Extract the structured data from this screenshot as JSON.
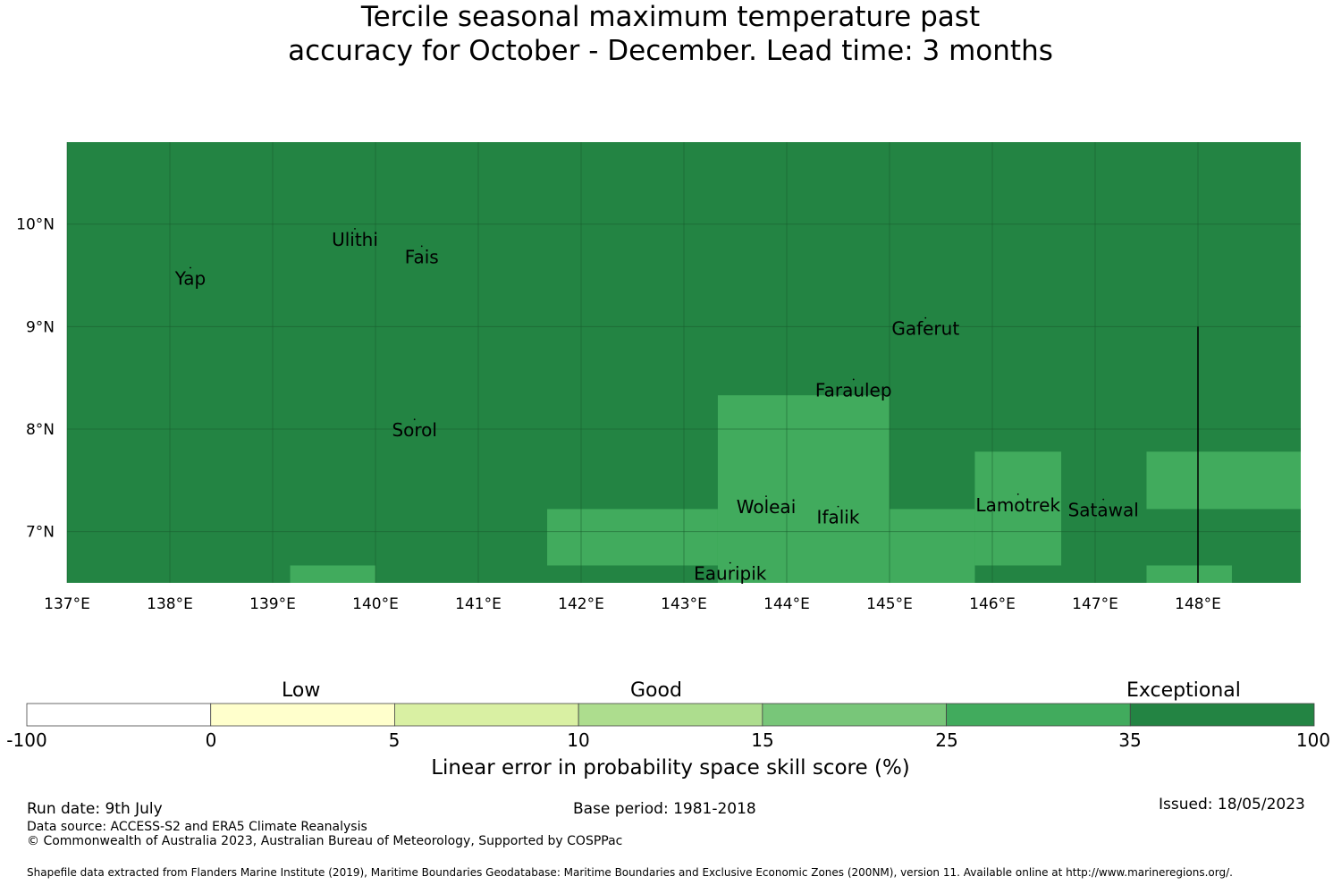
{
  "title_line1": "Tercile seasonal maximum temperature past",
  "title_line2": "accuracy for October - December. Lead time: 3 months",
  "map": {
    "lon_range": [
      137,
      149
    ],
    "lat_range": [
      6.5,
      10.8
    ],
    "lon_ticks": [
      137,
      138,
      139,
      140,
      141,
      142,
      143,
      144,
      145,
      146,
      147,
      148
    ],
    "lon_tick_labels": [
      "137°E",
      "138°E",
      "139°E",
      "140°E",
      "141°E",
      "142°E",
      "143°E",
      "144°E",
      "145°E",
      "146°E",
      "147°E",
      "148°E"
    ],
    "lat_ticks": [
      10,
      9,
      8,
      7
    ],
    "lat_tick_labels": [
      "10°N",
      "9°N",
      "8°N",
      "7°N"
    ],
    "background_color": "#238443",
    "cells": [
      {
        "lon0": 139.17,
        "lon1": 140.0,
        "lat0": 6.5,
        "lat1": 6.67,
        "color": "#41ab5d"
      },
      {
        "lon0": 141.67,
        "lon1": 143.33,
        "lat0": 6.67,
        "lat1": 7.22,
        "color": "#41ab5d"
      },
      {
        "lon0": 143.33,
        "lon1": 145.0,
        "lat0": 6.5,
        "lat1": 8.33,
        "color": "#41ab5d"
      },
      {
        "lon0": 145.0,
        "lon1": 145.83,
        "lat0": 6.5,
        "lat1": 7.22,
        "color": "#41ab5d"
      },
      {
        "lon0": 145.83,
        "lon1": 146.67,
        "lat0": 6.67,
        "lat1": 7.78,
        "color": "#41ab5d"
      },
      {
        "lon0": 147.5,
        "lon1": 149.0,
        "lat0": 7.22,
        "lat1": 7.78,
        "color": "#41ab5d"
      },
      {
        "lon0": 147.5,
        "lon1": 148.33,
        "lat0": 6.5,
        "lat1": 6.67,
        "color": "#41ab5d"
      }
    ],
    "boundary_line": {
      "lon": 148.0,
      "lat0": 6.5,
      "lat1": 9.0
    },
    "places": [
      {
        "name": "Ulithi",
        "lon": 139.8,
        "lat": 9.85
      },
      {
        "name": "Fais",
        "lon": 140.45,
        "lat": 9.68
      },
      {
        "name": "Yap",
        "lon": 138.2,
        "lat": 9.47
      },
      {
        "name": "Gaferut",
        "lon": 145.35,
        "lat": 8.98
      },
      {
        "name": "Faraulep",
        "lon": 144.65,
        "lat": 8.38
      },
      {
        "name": "Sorol",
        "lon": 140.38,
        "lat": 7.99
      },
      {
        "name": "Woleai",
        "lon": 143.8,
        "lat": 7.24
      },
      {
        "name": "Ifalik",
        "lon": 144.5,
        "lat": 7.14
      },
      {
        "name": "Lamotrek",
        "lon": 146.25,
        "lat": 7.26
      },
      {
        "name": "Satawal",
        "lon": 147.08,
        "lat": 7.21
      },
      {
        "name": "Eauripik",
        "lon": 143.45,
        "lat": 6.59
      }
    ]
  },
  "colorbar": {
    "category_labels": [
      "Low",
      "Good",
      "Exceptional"
    ],
    "bins": [
      {
        "from": -100,
        "to": 0,
        "color": "#ffffff"
      },
      {
        "from": 0,
        "to": 5,
        "color": "#ffffcc"
      },
      {
        "from": 5,
        "to": 10,
        "color": "#d9f0a3"
      },
      {
        "from": 10,
        "to": 15,
        "color": "#addd8e"
      },
      {
        "from": 15,
        "to": 25,
        "color": "#78c679"
      },
      {
        "from": 25,
        "to": 35,
        "color": "#41ab5d"
      },
      {
        "from": 35,
        "to": 100,
        "color": "#238443"
      }
    ],
    "tick_labels": [
      "-100",
      "0",
      "5",
      "10",
      "15",
      "25",
      "35",
      "100"
    ],
    "title": "Linear error in probability space skill score (%)"
  },
  "footer": {
    "run_date": "Run date: 9th July",
    "base_period": "Base period: 1981-2018",
    "issued": "Issued: 18/05/2023",
    "data_source": "Data source: ACCESS-S2 and ERA5 Climate Reanalysis",
    "copyright": "© Commonwealth of Australia 2023, Australian Bureau of Meteorology, Supported by COSPPac",
    "shapefile": "Shapefile data extracted from Flanders Marine Institute (2019), Maritime Boundaries Geodatabase: Maritime Boundaries and Exclusive Economic Zones (200NM), version 11. Available online at http://www.marineregions.org/."
  }
}
